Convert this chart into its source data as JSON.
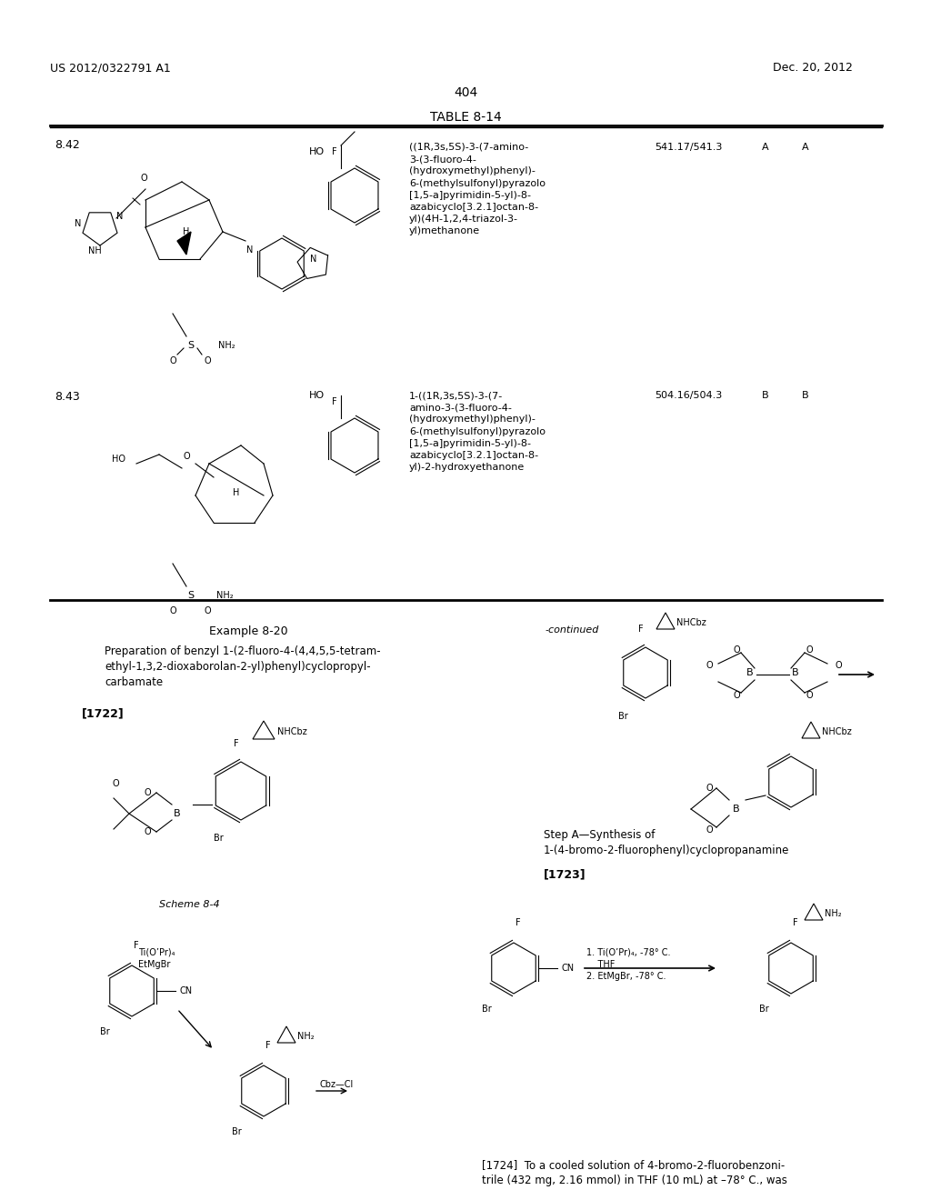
{
  "page_number": "404",
  "patent_number": "US 2012/0322791 A1",
  "patent_date": "Dec. 20, 2012",
  "background_color": "#ffffff",
  "text_color": "#000000",
  "table_title": "TABLE 8-14",
  "table_entries": [
    {
      "id": "8.42",
      "name": "((1R,3s,5S)-3-(7-amino-3-(3-fluoro-4-(hydroxymethyl)phenyl)-6-(methylsulfonyl)pyrazolo[1,5-a]pyrimidin-5-yl)-8-azabicyclo[3.2.1]octan-8-yl)(4H-1,2,4-triazol-3-yl)methanone",
      "mw": "541.17/541.3",
      "col1": "A",
      "col2": "A"
    },
    {
      "id": "8.43",
      "name": "1-((1R,3s,5S)-3-(7-amino-3-(3-fluoro-4-(hydroxymethyl)phenyl)-6-(methylsulfonyl)pyrazolo[1,5-a]pyrimidin-5-yl)-8-azabicyclo[3.2.1]octan-8-yl)-2-hydroxyethanone",
      "mw": "504.16/504.3",
      "col1": "B",
      "col2": "B"
    }
  ],
  "example_section": {
    "title": "Example 8-20",
    "subtitle": "Preparation of benzyl 1-(2-fluoro-4-(4,4,5,5-tetram-\nethyl-1,3,2-dioxaborolan-2-yl)phenyl)cyclopropyl-\ncarbamate",
    "tag": "[1722]",
    "continued_label": "-continued"
  },
  "step_section": {
    "label": "Scheme 8-4",
    "step_title": "Step A—Synthesis of\n1-(4-bromo-2-fluorophenyl)cyclopropanamine",
    "step_tag": "[1723]",
    "reagents_left": "Ti(O’Pr)₄\nEtMgBr",
    "reagents_right1": "1. Ti(O’Pr)₄, -78° C.\n    THF\n2. EtMgBr, -78° C.",
    "reagents_right2": "Cbz—Cl"
  },
  "bottom_text": "[1724]  To a cooled solution of 4-bromo-2-fluorobenzoni-\ntrile (432 mg, 2.16 mmol) in THF (10 mL) at –78° C., was"
}
